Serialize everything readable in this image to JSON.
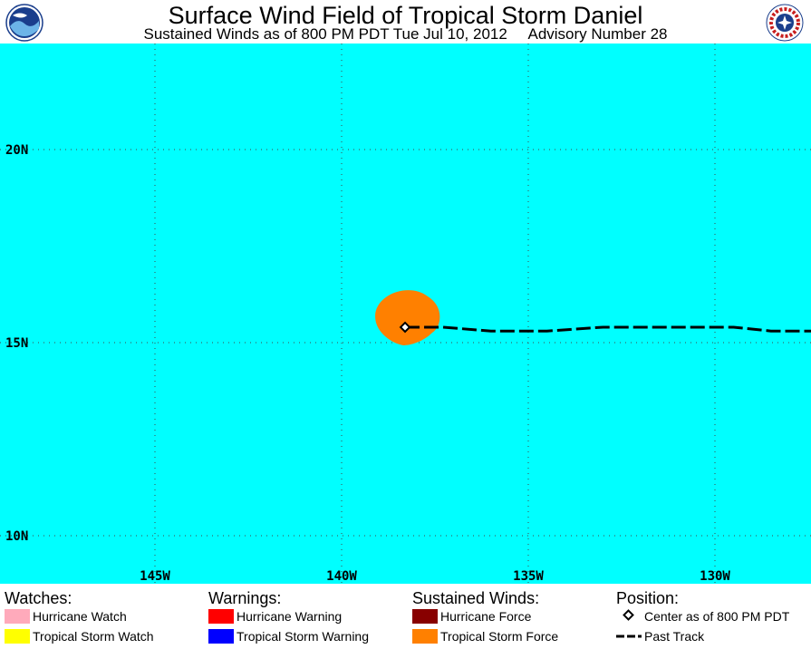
{
  "header": {
    "title": "Surface Wind Field of Tropical Storm Daniel",
    "subtitle": "Sustained Winds as of 800 PM PDT Tue Jul 10, 2012     Advisory Number 28"
  },
  "logos": {
    "left": {
      "name": "noaa-logo",
      "text": "NOAA"
    },
    "right": {
      "name": "nws-logo",
      "text": "NATIONAL WEATHER SERVICE"
    }
  },
  "map": {
    "ocean_color": "#00ffff",
    "lat_labels": [
      "20N",
      "15N",
      "10N"
    ],
    "lon_labels": [
      "145W",
      "140W",
      "135W",
      "130W"
    ],
    "lat_values": [
      20,
      15,
      10
    ],
    "lon_values": [
      -145,
      -140,
      -135,
      -130
    ],
    "storm_center": {
      "lat": 15.4,
      "lon": -138.3
    },
    "tropical_storm_force_color": "#ff8000",
    "past_track": [
      {
        "lat": 15.4,
        "lon": -138.3
      },
      {
        "lat": 15.4,
        "lon": -137.3
      },
      {
        "lat": 15.3,
        "lon": -136.0
      },
      {
        "lat": 15.3,
        "lon": -134.5
      },
      {
        "lat": 15.4,
        "lon": -133.0
      },
      {
        "lat": 15.4,
        "lon": -130.8
      },
      {
        "lat": 15.4,
        "lon": -129.5
      },
      {
        "lat": 15.3,
        "lon": -128.5
      },
      {
        "lat": 15.3,
        "lon": -127.2
      }
    ]
  },
  "legend": {
    "watches": {
      "heading": "Watches:",
      "items": [
        {
          "label": "Hurricane Watch",
          "color": "#ffaabb"
        },
        {
          "label": "Tropical Storm Watch",
          "color": "#ffff00"
        }
      ]
    },
    "warnings": {
      "heading": "Warnings:",
      "items": [
        {
          "label": "Hurricane Warning",
          "color": "#ff0000"
        },
        {
          "label": "Tropical Storm Warning",
          "color": "#0000ff"
        }
      ]
    },
    "winds": {
      "heading": "Sustained Winds:",
      "items": [
        {
          "label": "Hurricane Force",
          "color": "#880000"
        },
        {
          "label": "Tropical Storm Force",
          "color": "#ff8000"
        }
      ]
    },
    "position": {
      "heading": "Position:",
      "center_label": "Center as of 800 PM PDT",
      "track_label": "Past Track"
    }
  }
}
